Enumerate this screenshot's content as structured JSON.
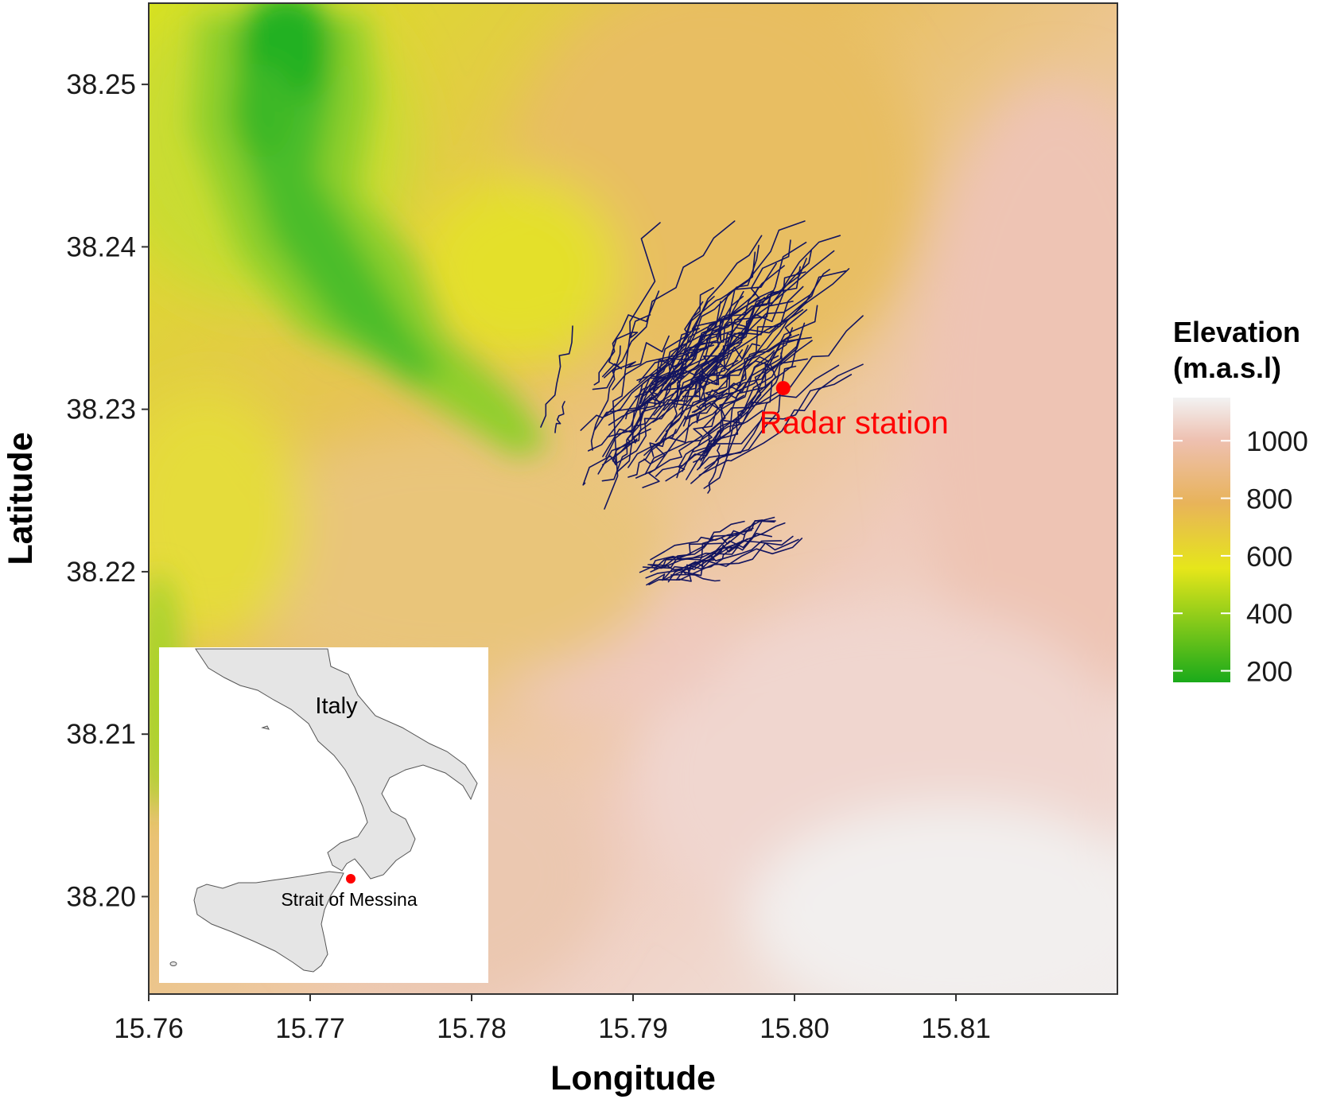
{
  "map": {
    "x_axis": {
      "title": "Longitude",
      "ticks": [
        {
          "value": 15.76,
          "label": "15.76"
        },
        {
          "value": 15.77,
          "label": "15.77"
        },
        {
          "value": 15.78,
          "label": "15.78"
        },
        {
          "value": 15.79,
          "label": "15.79"
        },
        {
          "value": 15.8,
          "label": "15.80"
        },
        {
          "value": 15.81,
          "label": "15.81"
        }
      ],
      "range": [
        15.76,
        15.82
      ]
    },
    "y_axis": {
      "title": "Latitude",
      "ticks": [
        {
          "value": 38.2,
          "label": "38.20"
        },
        {
          "value": 38.21,
          "label": "38.21"
        },
        {
          "value": 38.22,
          "label": "38.22"
        },
        {
          "value": 38.23,
          "label": "38.23"
        },
        {
          "value": 38.24,
          "label": "38.24"
        },
        {
          "value": 38.25,
          "label": "38.25"
        }
      ],
      "range": [
        38.194,
        38.255
      ]
    },
    "legend": {
      "title_line1": "Elevation",
      "title_line2": "(m.a.s.l)",
      "placement": "right",
      "labels": [
        {
          "value": 1000,
          "label": "1000"
        },
        {
          "value": 800,
          "label": "800"
        },
        {
          "value": 600,
          "label": "600"
        },
        {
          "value": 400,
          "label": "400"
        },
        {
          "value": 200,
          "label": "200"
        }
      ],
      "range": [
        160,
        1150
      ],
      "color_stops": [
        "#1aaa1a",
        "#e6e61a",
        "#e8b35a",
        "#eec0b0",
        "#f2f2f2"
      ]
    },
    "radar": {
      "label": "Radar station",
      "lon": 15.7993,
      "lat": 38.2313,
      "color": "#ff0000"
    },
    "track_color": "#131560",
    "inset": {
      "country_label": "Italy",
      "place_label": "Strait of Messina",
      "marker_color": "#ff0000",
      "land_color": "#e5e5e5"
    }
  },
  "chart_data": {
    "type": "map",
    "title": "",
    "xlabel": "Longitude",
    "ylabel": "Latitude",
    "xlim": [
      15.76,
      15.82
    ],
    "ylim": [
      38.194,
      38.255
    ],
    "colorbar": {
      "title": "Elevation (m.a.s.l)",
      "min": 160,
      "max": 1150
    },
    "points": [
      {
        "label": "Radar station",
        "x": 15.7993,
        "y": 38.2313
      }
    ],
    "track_extent": {
      "lon": [
        15.7845,
        15.8055
      ],
      "lat": [
        38.2185,
        38.2411
      ]
    }
  }
}
